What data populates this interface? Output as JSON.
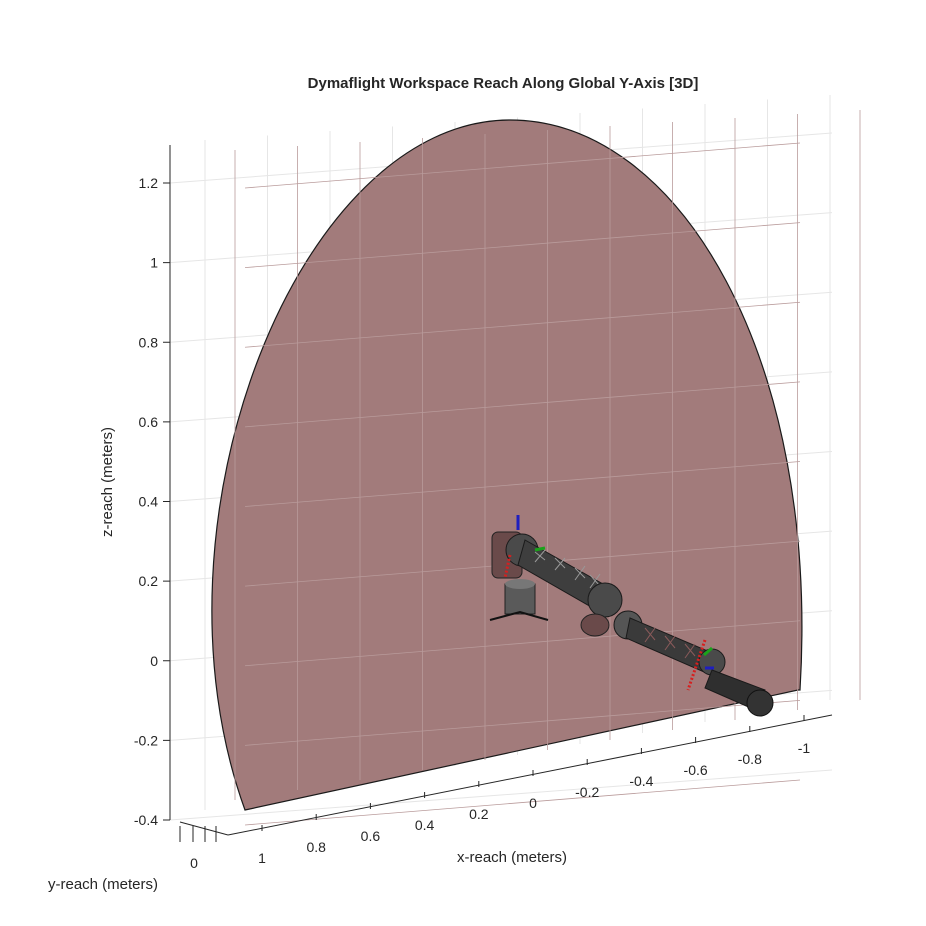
{
  "chart_data": {
    "type": "3d-surface",
    "title": "Dymaflight Workspace Reach Along Global Y-Axis [3D]",
    "xlabel": "x-reach (meters)",
    "ylabel": "y-reach (meters)",
    "zlabel": "z-reach (meters)",
    "x_ticks": [
      "1",
      "0.8",
      "0.6",
      "0.4",
      "0.2",
      "0",
      "-0.2",
      "-0.4",
      "-0.6",
      "-0.8",
      "-1"
    ],
    "y_ticks": [
      "0"
    ],
    "z_ticks": [
      "1.2",
      "1",
      "0.8",
      "0.6",
      "0.4",
      "0.2",
      "0",
      "-0.2",
      "-0.4"
    ],
    "x_range": [
      -1,
      1
    ],
    "z_range": [
      -0.4,
      1.2
    ],
    "grid": true,
    "surface": {
      "name": "",
      "shape": "half-disc in the x-z plane",
      "color": "#a27b7b",
      "edge_color": "#1a1a1a"
    },
    "robot": {
      "description": "serial manipulator arm",
      "link_color": "#555555",
      "joint_color": "#2e2e2e",
      "frame_axis_colors": [
        "#d61f1f",
        "#1aa31a",
        "#1f1fbf"
      ]
    }
  }
}
